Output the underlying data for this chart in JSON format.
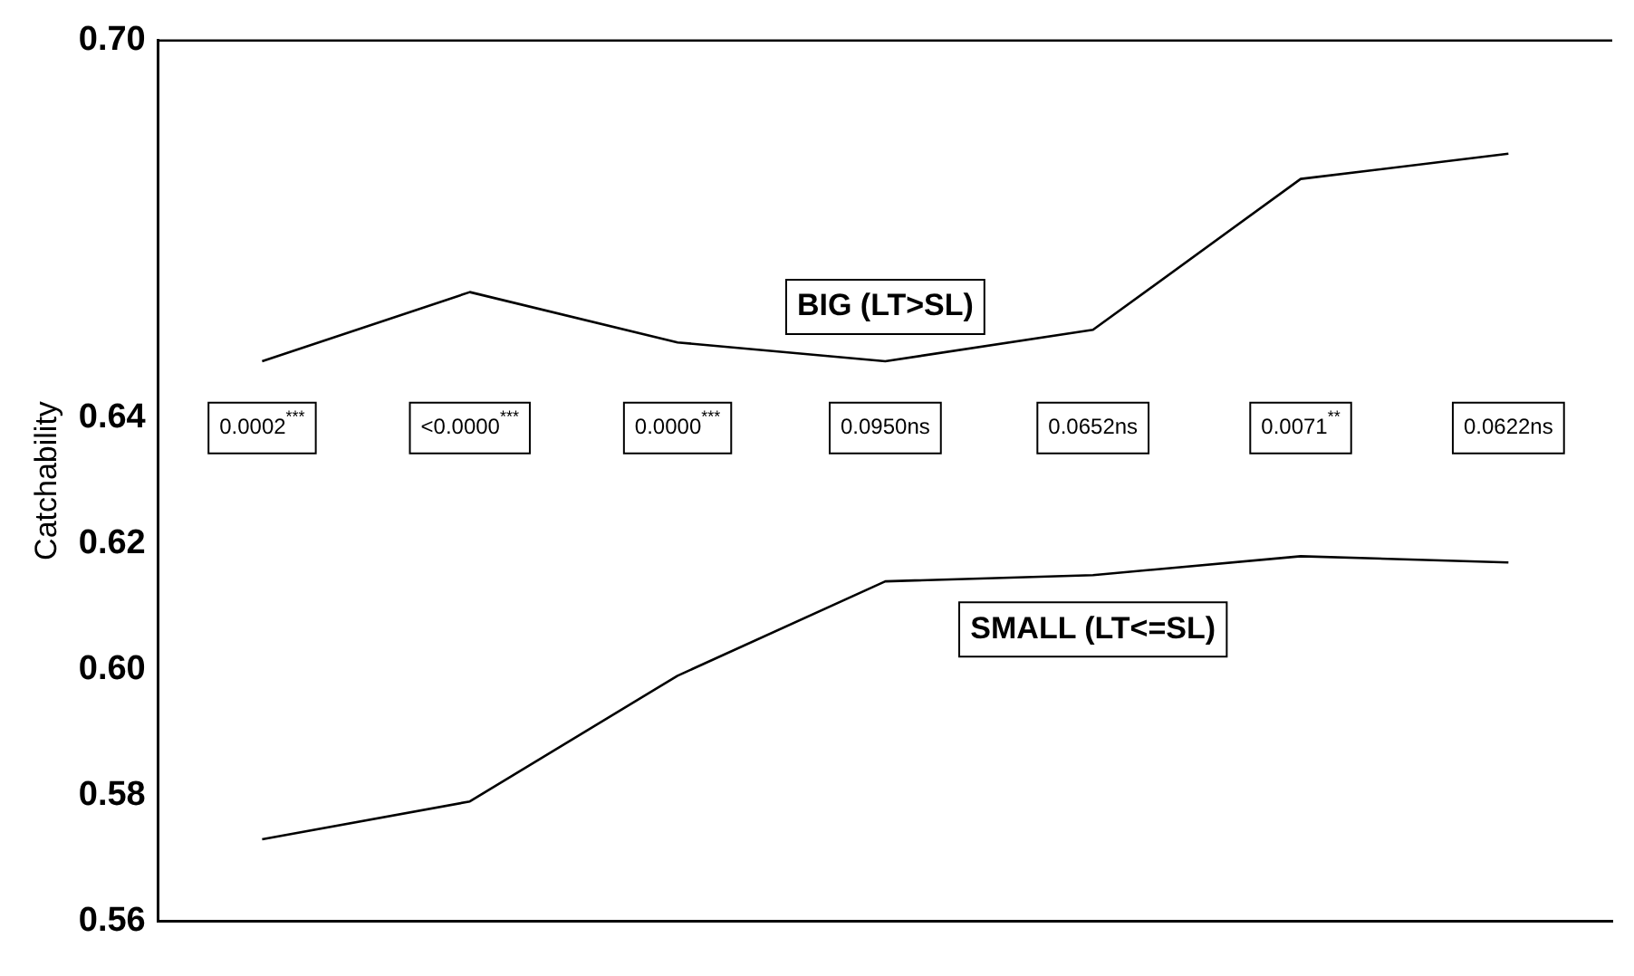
{
  "chart_data": {
    "type": "line",
    "ylabel": "Catchability",
    "categories": [
      null,
      null,
      null,
      null,
      null,
      null,
      null
    ],
    "series": [
      {
        "name": "BIG (LT>SL)",
        "color": "#000000",
        "values": [
          0.649,
          0.66,
          0.652,
          0.649,
          0.654,
          0.678,
          0.682
        ]
      },
      {
        "name": "SMALL (LT<=SL)",
        "color": "#000000",
        "values": [
          0.573,
          0.579,
          0.599,
          0.614,
          0.615,
          0.618,
          0.617
        ]
      }
    ],
    "ylim": [
      0.56,
      0.7
    ],
    "yticks": [
      0.56,
      0.58,
      {
        "value": 0.6,
        "label": "0.60"
      },
      0.62,
      0.64,
      {
        "value": 0.7,
        "label": "0.70"
      }
    ],
    "annotations": [
      "0.0002$^{***}$",
      "<0.0000$^{***}$",
      "0.0000$^{***}$",
      "0.0950ns",
      "0.0652ns",
      "0.0071$^{**}$",
      "0.0622ns"
    ],
    "grid": false,
    "legend": false,
    "marker": "none",
    "line_style": "solid"
  }
}
